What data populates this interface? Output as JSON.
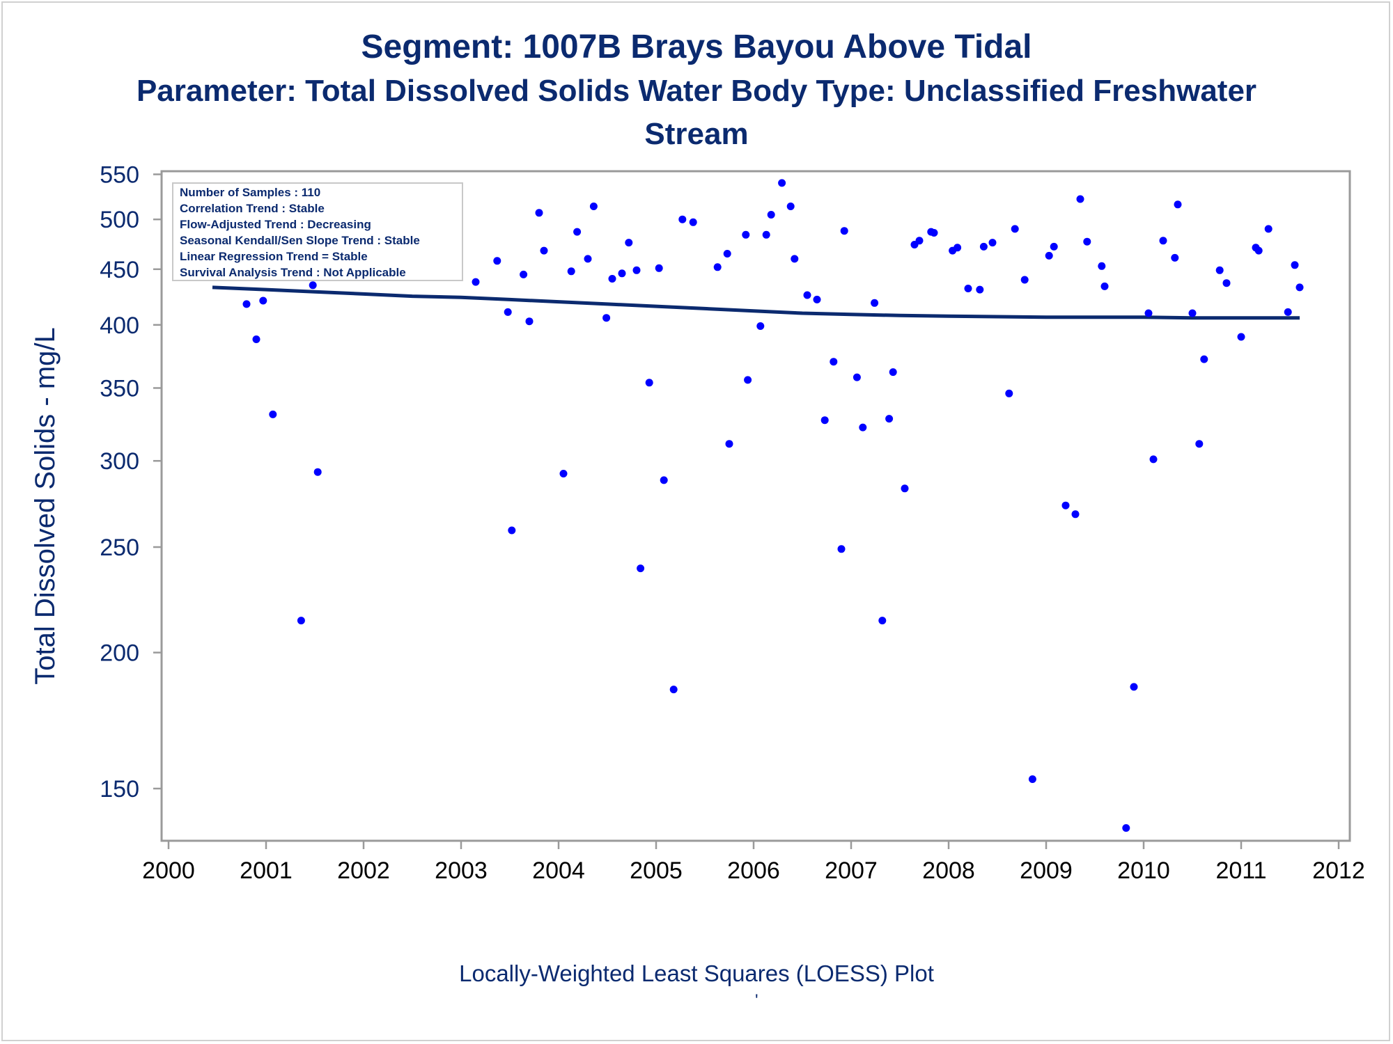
{
  "header": {
    "title": "Segment: 1007B  Brays Bayou Above Tidal",
    "subtitle_line1": "Parameter: Total Dissolved Solids   Water Body Type: Unclassified Freshwater",
    "subtitle_line2": "Stream"
  },
  "footer": {
    "caption": "Locally-Weighted Least Squares (LOESS) Plot",
    "mark": "'"
  },
  "colors": {
    "title": "#0b2a6f",
    "points": "#0000ff",
    "trend_line": "#0b2a6f",
    "axis": "#9a9a9a",
    "inset_border": "#c8c8c8"
  },
  "inset": {
    "lines": [
      "Number of Samples : 110",
      "Correlation Trend : Stable",
      "Flow-Adjusted Trend : Decreasing",
      "Seasonal Kendall/Sen Slope Trend : Stable",
      "Linear Regression Trend = Stable",
      "Survival Analysis Trend : Not Applicable"
    ]
  },
  "chart_data": {
    "type": "scatter",
    "title": "Segment: 1007B  Brays Bayou Above Tidal",
    "subtitle": "Parameter: Total Dissolved Solids   Water Body Type: Unclassified Freshwater Stream",
    "xlabel": "",
    "ylabel": "Total Dissolved Solids - mg/L",
    "y_scale": "log",
    "xlim": [
      2000,
      2012
    ],
    "ylim": [
      136,
      570
    ],
    "x_ticks": [
      2000,
      2001,
      2002,
      2003,
      2004,
      2005,
      2006,
      2007,
      2008,
      2009,
      2010,
      2011,
      2012
    ],
    "y_ticks": [
      150,
      200,
      250,
      300,
      350,
      400,
      450,
      500,
      550
    ],
    "grid": false,
    "legend": "none",
    "series": [
      {
        "kind": "points",
        "x": [
          2000.45,
          2000.53,
          2000.62,
          2000.72,
          2000.8,
          2000.9,
          2000.97,
          2001.07,
          2001.12,
          2001.2,
          2001.28,
          2001.36,
          2001.48,
          2001.53,
          2001.63,
          2001.72,
          2001.85,
          2002.08,
          2002.38,
          2002.88,
          2003.15,
          2003.37,
          2003.48,
          2003.52,
          2003.64,
          2003.7,
          2003.8,
          2003.85,
          2004.05,
          2004.13,
          2004.19,
          2004.3,
          2004.36,
          2004.49,
          2004.55,
          2004.65,
          2004.72,
          2004.8,
          2004.84,
          2004.93,
          2005.03,
          2005.08,
          2005.18,
          2005.27,
          2005.38,
          2005.63,
          2005.73,
          2005.75,
          2005.92,
          2005.94,
          2006.07,
          2006.13,
          2006.18,
          2006.29,
          2006.38,
          2006.42,
          2006.55,
          2006.65,
          2006.73,
          2006.82,
          2006.9,
          2006.93,
          2007.06,
          2007.12,
          2007.24,
          2007.32,
          2007.39,
          2007.43,
          2007.55,
          2007.65,
          2007.7,
          2007.82,
          2007.85,
          2008.04,
          2008.09,
          2008.2,
          2008.32,
          2008.36,
          2008.45,
          2008.62,
          2008.68,
          2008.78,
          2008.86,
          2009.03,
          2009.08,
          2009.2,
          2009.3,
          2009.35,
          2009.42,
          2009.57,
          2009.6,
          2009.82,
          2009.9,
          2010.05,
          2010.1,
          2010.2,
          2010.32,
          2010.35,
          2010.5,
          2010.57,
          2010.62,
          2010.78,
          2010.85,
          2011.0,
          2011.15,
          2011.18,
          2011.28,
          2011.48,
          2011.55,
          2011.6
        ],
        "y": [
          455,
          481,
          446,
          459,
          418,
          388,
          421,
          331,
          452,
          466,
          499,
          214,
          435,
          293,
          475,
          466,
          483,
          467,
          508,
          488,
          438,
          458,
          411,
          259,
          445,
          403,
          507,
          468,
          292,
          448,
          487,
          460,
          514,
          406,
          441,
          446,
          476,
          449,
          239,
          354,
          451,
          288,
          185,
          500,
          497,
          452,
          465,
          311,
          484,
          356,
          399,
          484,
          505,
          540,
          514,
          460,
          426,
          422,
          327,
          370,
          249,
          488,
          358,
          322,
          419,
          214,
          328,
          362,
          283,
          474,
          478,
          487,
          486,
          468,
          471,
          432,
          431,
          472,
          476,
          346,
          490,
          440,
          153,
          463,
          472,
          273,
          268,
          522,
          477,
          453,
          434,
          138,
          186,
          410,
          301,
          478,
          461,
          516,
          410,
          311,
          372,
          449,
          437,
          390,
          471,
          468,
          490,
          411,
          454,
          433
        ]
      },
      {
        "kind": "loess",
        "x": [
          2000.45,
          2001.0,
          2001.5,
          2002.0,
          2002.5,
          2003.0,
          2003.5,
          2004.0,
          2004.5,
          2005.0,
          2005.5,
          2006.0,
          2006.5,
          2007.0,
          2007.5,
          2008.0,
          2008.5,
          2009.0,
          2009.5,
          2010.0,
          2010.5,
          2011.0,
          2011.6
        ],
        "y": [
          433,
          431,
          429,
          427,
          425,
          424,
          422,
          420,
          418,
          416,
          414,
          412,
          410,
          409,
          408,
          407.5,
          407,
          406.5,
          406.5,
          406.5,
          406,
          406,
          406
        ]
      }
    ]
  }
}
